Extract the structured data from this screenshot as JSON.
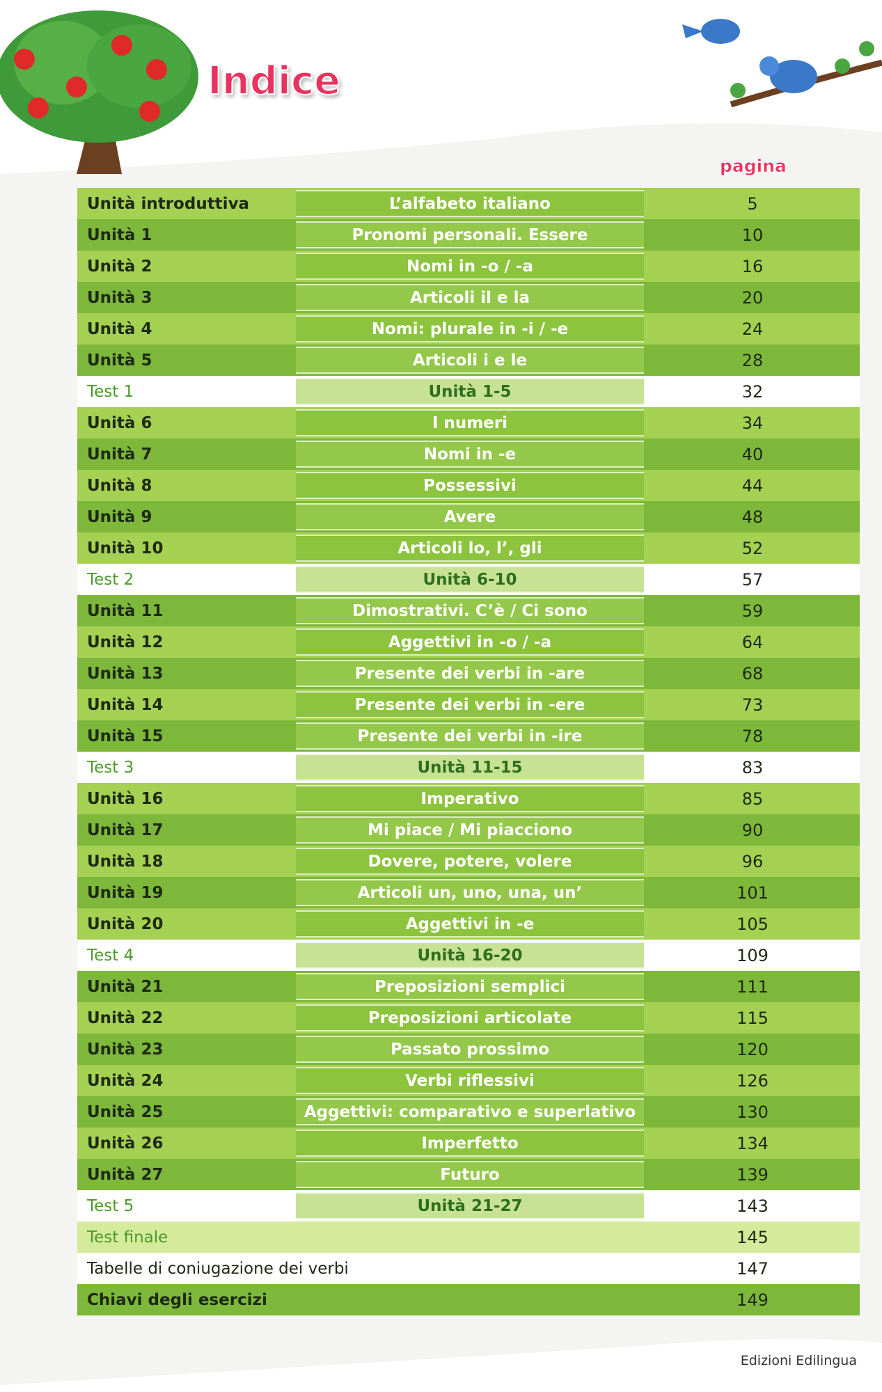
{
  "header": {
    "title": "Indice",
    "column_header": "pagina"
  },
  "rows": [
    {
      "label": "Unità introduttiva",
      "topic": "L’alfabeto italiano",
      "page": "5"
    },
    {
      "label": "Unità 1",
      "topic": "Pronomi personali. Essere",
      "page": "10"
    },
    {
      "label": "Unità 2",
      "topic": "Nomi in -o / -a",
      "page": "16"
    },
    {
      "label": "Unità 3",
      "topic": "Articoli il e la",
      "page": "20"
    },
    {
      "label": "Unità 4",
      "topic": "Nomi: plurale in -i / -e",
      "page": "24"
    },
    {
      "label": "Unità 5",
      "topic": "Articoli i e le",
      "page": "28"
    },
    {
      "label": "Test 1",
      "topic": "Unità 1-5",
      "page": "32"
    },
    {
      "label": "Unità 6",
      "topic": "I numeri",
      "page": "34"
    },
    {
      "label": "Unità 7",
      "topic": "Nomi in -e",
      "page": "40"
    },
    {
      "label": "Unità 8",
      "topic": "Possessivi",
      "page": "44"
    },
    {
      "label": "Unità 9",
      "topic": "Avere",
      "page": "48"
    },
    {
      "label": "Unità 10",
      "topic": "Articoli lo, l’, gli",
      "page": "52"
    },
    {
      "label": "Test 2",
      "topic": "Unità 6-10",
      "page": "57"
    },
    {
      "label": "Unità 11",
      "topic": "Dimostrativi. C’è / Ci sono",
      "page": "59"
    },
    {
      "label": "Unità 12",
      "topic": "Aggettivi in -o / -a",
      "page": "64"
    },
    {
      "label": "Unità 13",
      "topic": "Presente dei verbi in -are",
      "page": "68"
    },
    {
      "label": "Unità 14",
      "topic": "Presente dei verbi in -ere",
      "page": "73"
    },
    {
      "label": "Unità 15",
      "topic": "Presente dei verbi in -ire",
      "page": "78"
    },
    {
      "label": "Test 3",
      "topic": "Unità 11-15",
      "page": "83"
    },
    {
      "label": "Unità 16",
      "topic": "Imperativo",
      "page": "85"
    },
    {
      "label": "Unità 17",
      "topic": "Mi piace / Mi piacciono",
      "page": "90"
    },
    {
      "label": "Unità 18",
      "topic": "Dovere, potere, volere",
      "page": "96"
    },
    {
      "label": "Unità 19",
      "topic": "Articoli un, uno, una, un’",
      "page": "101"
    },
    {
      "label": "Unità 20",
      "topic": "Aggettivi in -e",
      "page": "105"
    },
    {
      "label": "Test 4",
      "topic": "Unità 16-20",
      "page": "109"
    },
    {
      "label": "Unità 21",
      "topic": "Preposizioni semplici",
      "page": "111"
    },
    {
      "label": "Unità 22",
      "topic": "Preposizioni articolate",
      "page": "115"
    },
    {
      "label": "Unità 23",
      "topic": "Passato prossimo",
      "page": "120"
    },
    {
      "label": "Unità 24",
      "topic": "Verbi riflessivi",
      "page": "126"
    },
    {
      "label": "Unità 25",
      "topic": "Aggettivi: comparativo e superlativo",
      "page": "130"
    },
    {
      "label": "Unità 26",
      "topic": "Imperfetto",
      "page": "134"
    },
    {
      "label": "Unità 27",
      "topic": "Futuro",
      "page": "139"
    },
    {
      "label": "Test 5",
      "topic": "Unità 21-27",
      "page": "143"
    },
    {
      "label": "Test finale",
      "page": "145"
    },
    {
      "label": "Tabelle di coniugazione dei verbi",
      "page": "147"
    },
    {
      "label": "Chiavi degli esercizi",
      "page": "149"
    }
  ],
  "footer": "Edizioni Edilingua"
}
